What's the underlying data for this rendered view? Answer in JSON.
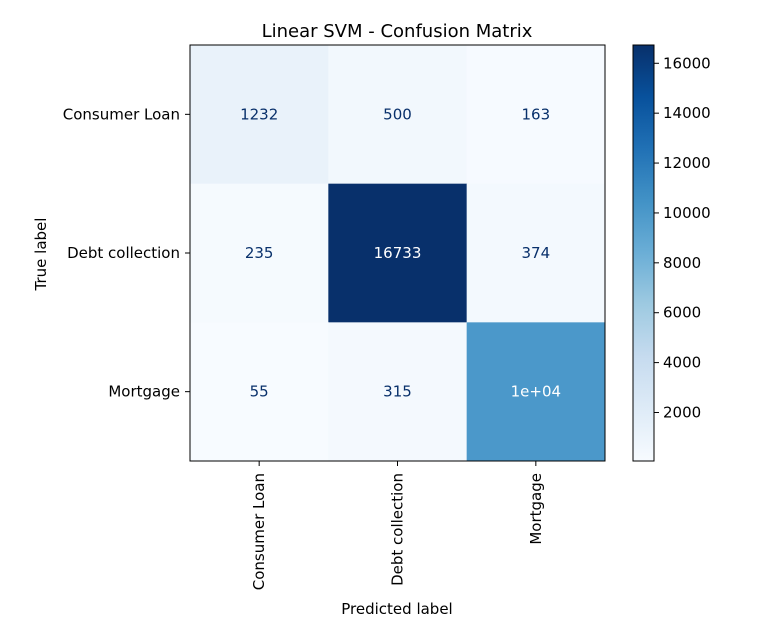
{
  "chart_data": {
    "type": "heatmap",
    "title": "Linear SVM - Confusion Matrix",
    "xlabel": "Predicted label",
    "ylabel": "True label",
    "x_categories": [
      "Consumer Loan",
      "Debt collection",
      "Mortgage"
    ],
    "y_categories": [
      "Consumer Loan",
      "Debt collection",
      "Mortgage"
    ],
    "values": [
      [
        1232,
        500,
        163
      ],
      [
        235,
        16733,
        374
      ],
      [
        55,
        315,
        10000
      ]
    ],
    "cell_text": [
      [
        "1232",
        "500",
        "163"
      ],
      [
        "235",
        "16733",
        "374"
      ],
      [
        "55",
        "315",
        "1e+04"
      ]
    ],
    "colormap": "Blues",
    "color_range": [
      55,
      16733
    ],
    "colorbar_ticks": [
      2000,
      4000,
      6000,
      8000,
      10000,
      12000,
      14000,
      16000
    ],
    "colorbar_tick_labels": [
      "2000",
      "4000",
      "6000",
      "8000",
      "10000",
      "12000",
      "14000",
      "16000"
    ]
  }
}
